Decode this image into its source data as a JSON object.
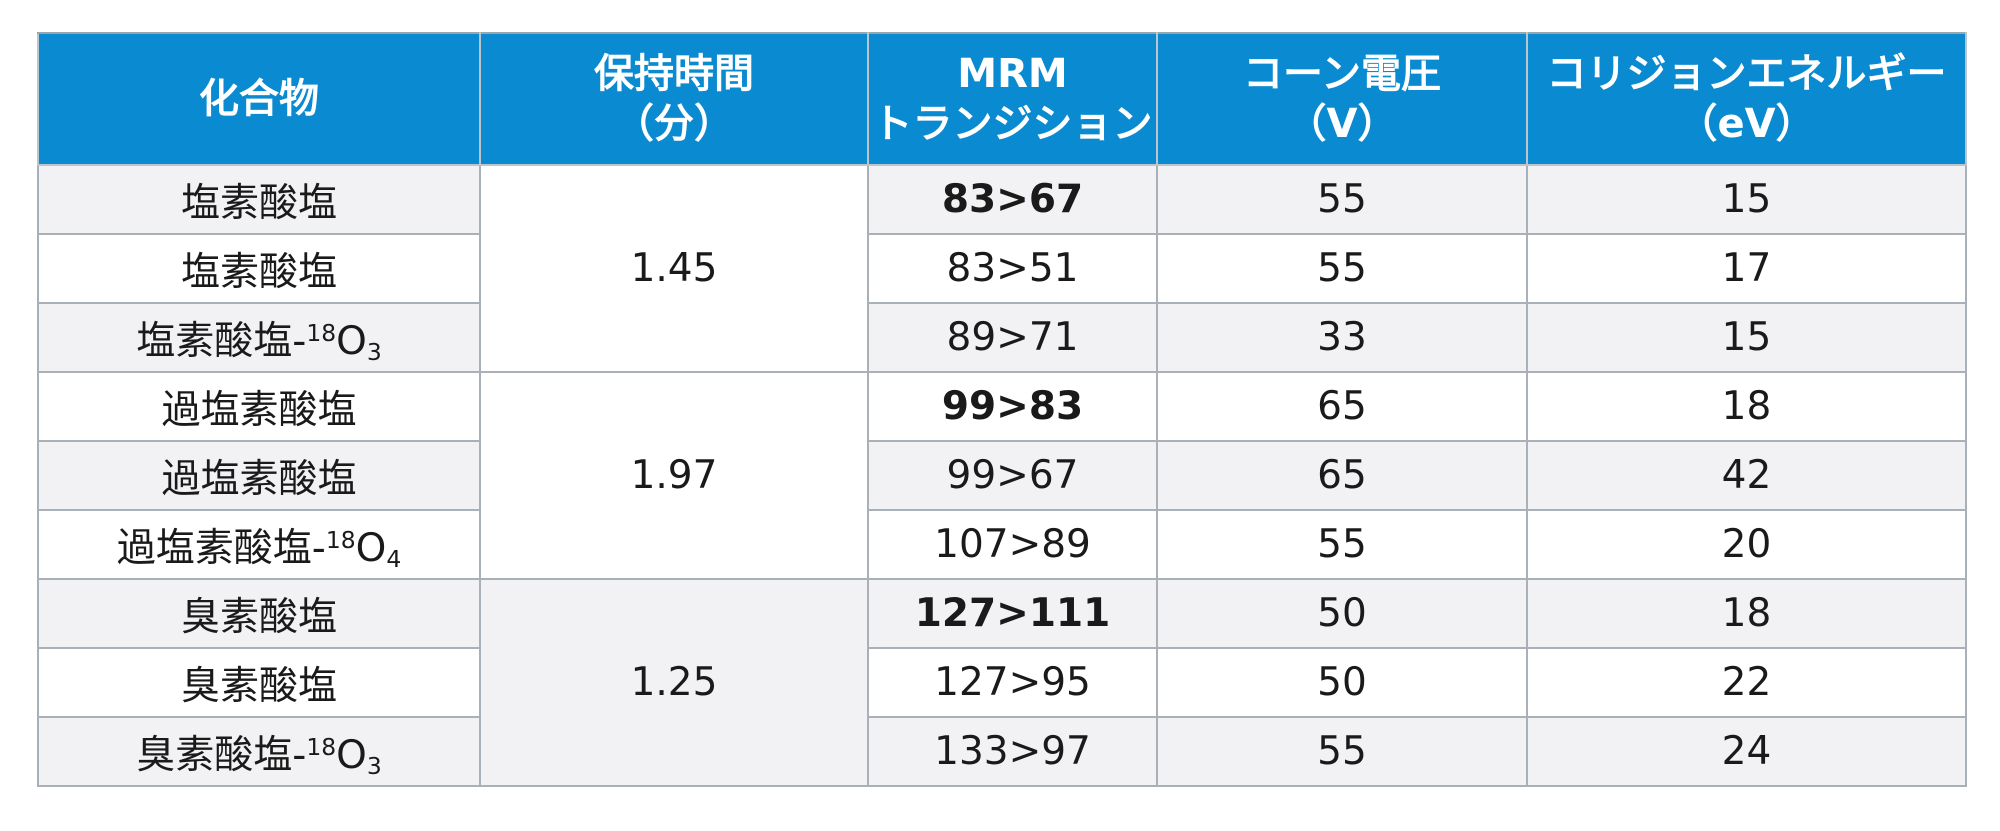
{
  "table": {
    "headers": {
      "compound": [
        "化合物"
      ],
      "retention_time": [
        "保持時間",
        "（分）"
      ],
      "mrm": [
        "MRM",
        "トランジション"
      ],
      "cone_voltage": [
        "コーン電圧",
        "（V）"
      ],
      "collision_energy": [
        "コリジョンエネルギー",
        "（eV）"
      ]
    },
    "groups": [
      {
        "retention_time": "1.45",
        "rows": [
          {
            "compound": "塩素酸塩",
            "isotope": "",
            "oxygen_sub": "",
            "transition": "83>67",
            "quant": true,
            "cone": "55",
            "ce": "15"
          },
          {
            "compound": "塩素酸塩",
            "isotope": "",
            "oxygen_sub": "",
            "transition": "83>51",
            "quant": false,
            "cone": "55",
            "ce": "17"
          },
          {
            "compound": "塩素酸塩-",
            "isotope": "18",
            "oxygen_sub": "3",
            "transition": "89>71",
            "quant": false,
            "cone": "33",
            "ce": "15"
          }
        ]
      },
      {
        "retention_time": "1.97",
        "rows": [
          {
            "compound": "過塩素酸塩",
            "isotope": "",
            "oxygen_sub": "",
            "transition": "99>83",
            "quant": true,
            "cone": "65",
            "ce": "18"
          },
          {
            "compound": "過塩素酸塩",
            "isotope": "",
            "oxygen_sub": "",
            "transition": "99>67",
            "quant": false,
            "cone": "65",
            "ce": "42"
          },
          {
            "compound": "過塩素酸塩-",
            "isotope": "18",
            "oxygen_sub": "4",
            "transition": "107>89",
            "quant": false,
            "cone": "55",
            "ce": "20"
          }
        ]
      },
      {
        "retention_time": "1.25",
        "rows": [
          {
            "compound": "臭素酸塩",
            "isotope": "",
            "oxygen_sub": "",
            "transition": "127>111",
            "quant": true,
            "cone": "50",
            "ce": "18"
          },
          {
            "compound": "臭素酸塩",
            "isotope": "",
            "oxygen_sub": "",
            "transition": "127>95",
            "quant": false,
            "cone": "50",
            "ce": "22"
          },
          {
            "compound": "臭素酸塩-",
            "isotope": "18",
            "oxygen_sub": "3",
            "transition": "133>97",
            "quant": false,
            "cone": "55",
            "ce": "24"
          }
        ]
      }
    ],
    "colors": {
      "header_bg": "#0a8ad0",
      "header_text": "#ffffff",
      "shaded_row": "#f2f2f4",
      "plain_row": "#ffffff",
      "grid": "#a9b0b7"
    }
  }
}
